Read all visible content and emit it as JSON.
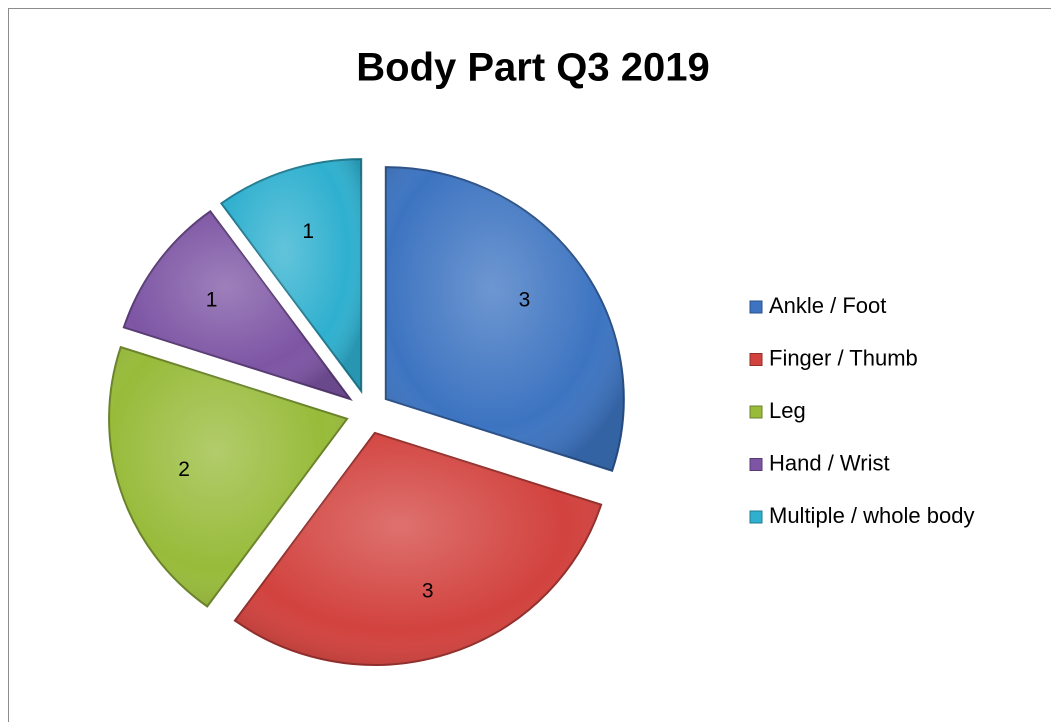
{
  "chart_data": {
    "type": "pie",
    "title": "Body Part Q3 2019",
    "categories": [
      "Ankle / Foot",
      "Finger / Thumb",
      "Leg",
      "Hand / Wrist",
      "Multiple / whole body"
    ],
    "values": [
      3,
      3,
      2,
      1,
      1
    ],
    "colors": [
      "#3d74c1",
      "#d2423e",
      "#98bb3a",
      "#7d55a4",
      "#2fb0cf"
    ],
    "legend": "right"
  }
}
